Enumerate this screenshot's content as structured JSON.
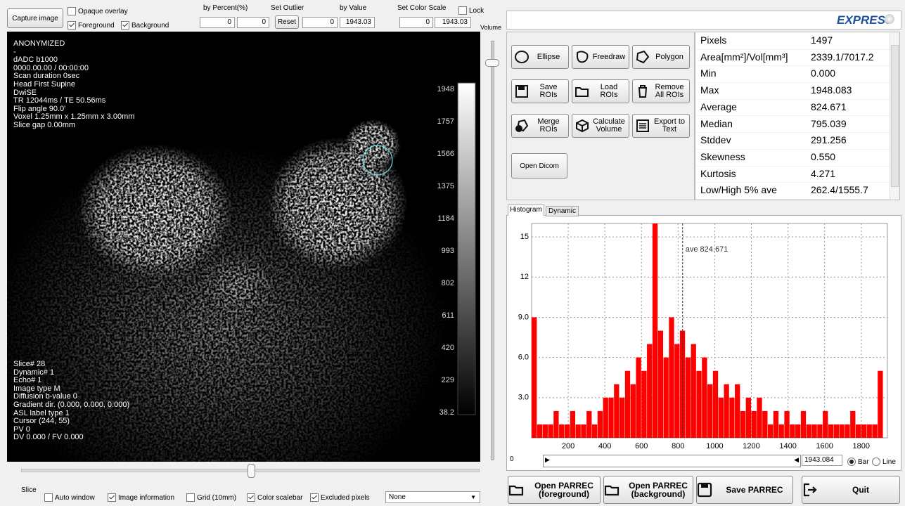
{
  "toolbar": {
    "capture": "Capture image",
    "checks": [
      {
        "label": "Opaque overlay",
        "checked": false
      },
      {
        "label": "Foreground",
        "checked": true
      },
      {
        "label": "Background",
        "checked": true
      }
    ],
    "by_percent": "by Percent(%)",
    "percent_low": "0",
    "percent_high": "0",
    "set_outlier": "Set Outlier",
    "reset": "Reset",
    "by_value": "by Value",
    "value_low": "0",
    "value_high": "1943.03",
    "set_color_scale": "Set Color Scale",
    "lock": {
      "label": "Lock",
      "checked": false
    },
    "scale_low": "0",
    "scale_high": "1943.03",
    "volume": "Volume"
  },
  "image_info": {
    "top": [
      "ANONYMIZED",
      "-",
      "dADC b1000",
      "0000.00.00 / 00:00:00",
      "Scan duration 0sec",
      "Head First Supine",
      "DwiSE",
      "TR 12044ms / TE 50.56ms",
      "Flip angle 90.0'",
      "Voxel 1.25mm x 1.25mm x 3.00mm",
      "Slice gap 0.00mm"
    ],
    "bottom": [
      "Slice# 28",
      "Dynamic# 1",
      "Echo# 1",
      "Image type M",
      "Diffusion b-value 0",
      "Gradient dir. (0.000, 0.000, 0.000)",
      "ASL label type 1",
      "Cursor (244, 55)",
      "PV 0",
      "DV 0.000 / FV 0.000"
    ]
  },
  "colorbar": {
    "ticks": [
      1948,
      1757,
      1566,
      1375,
      1184,
      993,
      802,
      611,
      420,
      229,
      38.2
    ]
  },
  "bottom_bar": {
    "slice": "Slice",
    "options": [
      {
        "label": "Auto window",
        "checked": false
      },
      {
        "label": "Image information",
        "checked": true
      },
      {
        "label": "Grid (10mm)",
        "checked": false
      },
      {
        "label": "Color scalebar",
        "checked": true
      },
      {
        "label": "Excluded pixels",
        "checked": true
      }
    ],
    "dropdown": "None"
  },
  "brand": "EXPRESS",
  "roi_tools": [
    "Ellipse",
    "Freedraw",
    "Polygon",
    "Save ROIs",
    "Load ROIs",
    "Remove All ROIs",
    "Merge ROIs",
    "Calculate Volume",
    "Export to Text"
  ],
  "open_dicom": "Open Dicom",
  "stats": {
    "rows": [
      [
        "Pixels",
        "1497"
      ],
      [
        "Area[mm²]/Vol[mm³]",
        "2339.1/7017.2"
      ],
      [
        "Min",
        "0.000"
      ],
      [
        "Max",
        "1948.083"
      ],
      [
        "Average",
        "824.671"
      ],
      [
        "Median",
        "795.039"
      ],
      [
        "Stddev",
        "291.256"
      ],
      [
        "Skewness",
        "0.550"
      ],
      [
        "Kurtosis",
        "4.271"
      ],
      [
        "Low/High 5% ave",
        "262.4/1555.7"
      ]
    ]
  },
  "tabs": [
    "Histogram",
    "Dynamic"
  ],
  "chart_data": {
    "type": "histogram",
    "color": "#ff0000",
    "grid": true,
    "bins": [
      0,
      30,
      60,
      90,
      120,
      150,
      180,
      210,
      240,
      270,
      300,
      330,
      360,
      390,
      420,
      450,
      480,
      510,
      540,
      570,
      600,
      630,
      660,
      690,
      720,
      750,
      780,
      810,
      840,
      870,
      900,
      930,
      960,
      990,
      1020,
      1050,
      1080,
      1110,
      1140,
      1170,
      1200,
      1230,
      1260,
      1290,
      1320,
      1350,
      1380,
      1410,
      1440,
      1470,
      1500,
      1530,
      1560,
      1590,
      1620,
      1650,
      1680,
      1710,
      1740,
      1770,
      1800,
      1830,
      1860,
      1890,
      1920
    ],
    "values": [
      9,
      1,
      1,
      1,
      2,
      1,
      1,
      2,
      1,
      1,
      2,
      1,
      2,
      3,
      3,
      4,
      3,
      5,
      4,
      6,
      5,
      7,
      16,
      8,
      6,
      9,
      7,
      8,
      6,
      7,
      5,
      6,
      4,
      5,
      3,
      4,
      3,
      4,
      2,
      3,
      2,
      3,
      2,
      1,
      2,
      1,
      2,
      1,
      1,
      2,
      1,
      1,
      1,
      2,
      1,
      1,
      1,
      1,
      2,
      1,
      1,
      1,
      1,
      5
    ],
    "xlim": [
      0,
      1943
    ],
    "ylim": [
      0,
      16
    ],
    "xticks": [
      200,
      400,
      600,
      800,
      1000,
      1200,
      1400,
      1600,
      1800
    ],
    "yticks": [
      {
        "value": 3,
        "label": "3.0"
      },
      {
        "value": 6,
        "label": "6.0"
      },
      {
        "value": 9,
        "label": "9.0"
      },
      12,
      15
    ],
    "annotation": {
      "text": "ave 824.671",
      "x": 824.671
    }
  },
  "range_bar": {
    "min": "0",
    "max": "1943.084",
    "modes": [
      {
        "label": "Bar",
        "checked": true
      },
      {
        "label": "Line",
        "checked": false
      }
    ]
  },
  "actions": [
    "Open PARREC (foreground)",
    "Open PARREC (background)",
    "Save PARREC",
    "Quit"
  ]
}
